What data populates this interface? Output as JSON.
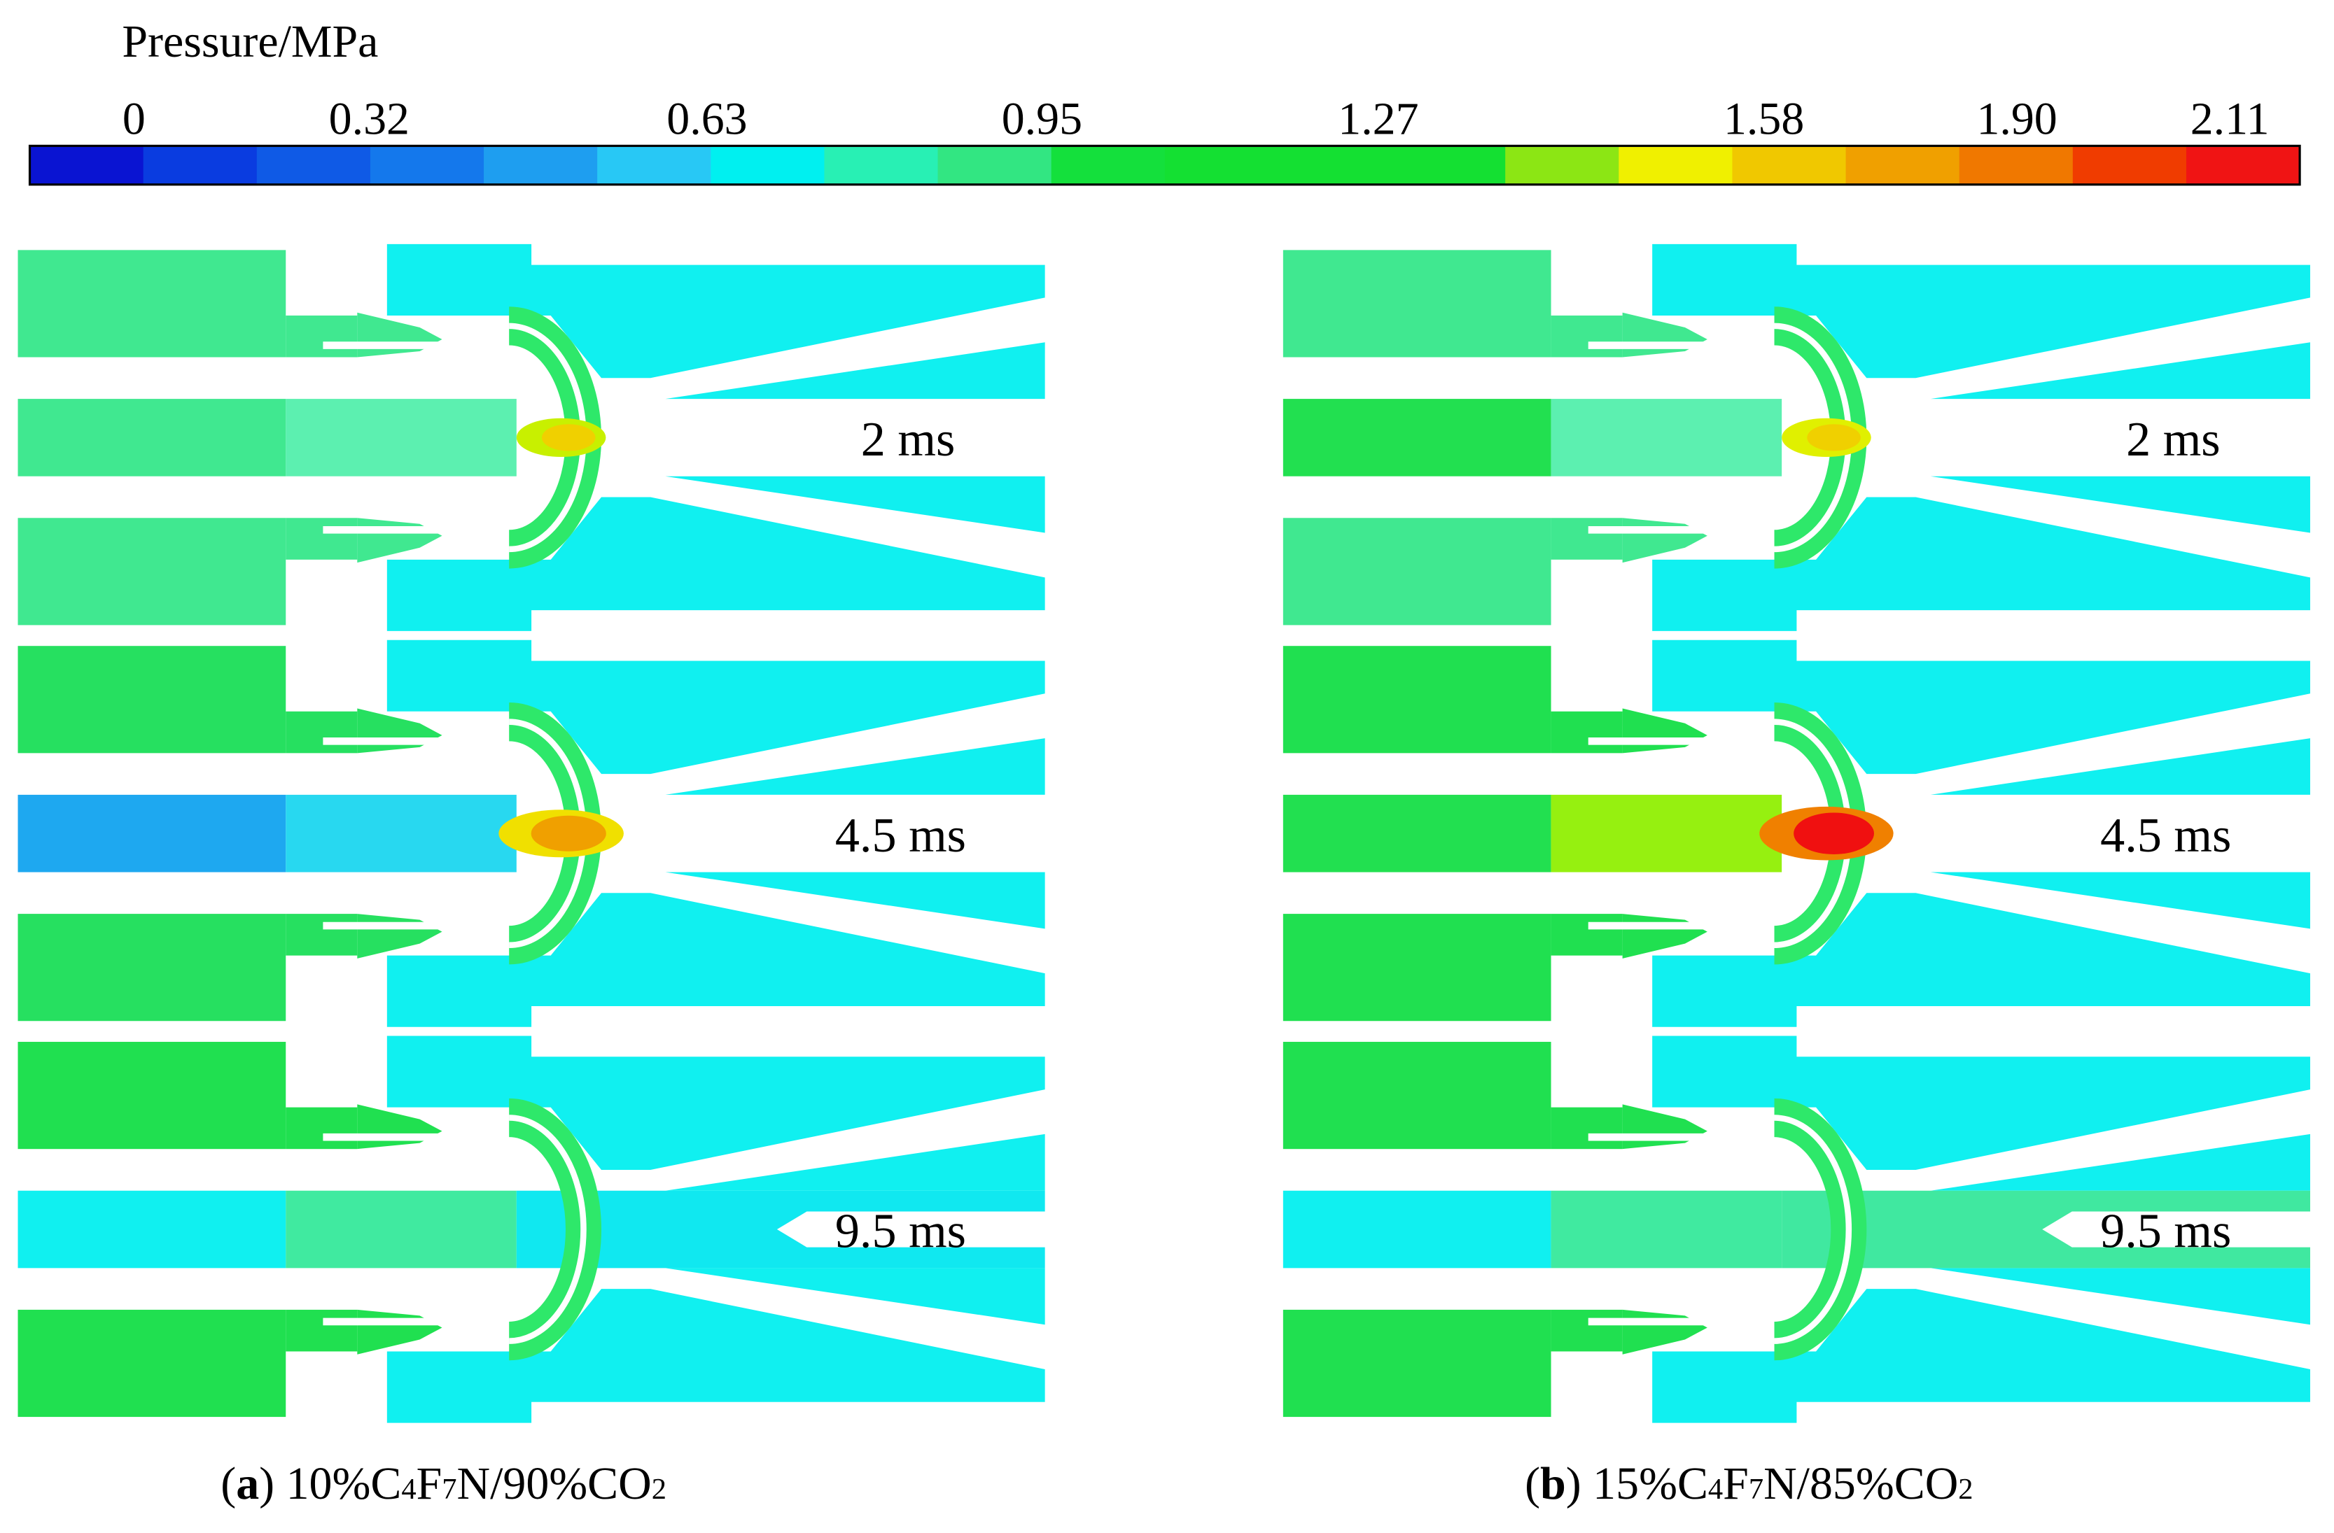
{
  "colorbar": {
    "title": "Pressure/MPa",
    "ticks": [
      "0",
      "0.32",
      "0.63",
      "0.95",
      "1.27",
      "1.58",
      "1.90",
      "2.11"
    ],
    "colors": [
      "#0a14d2",
      "#0a3ce0",
      "#0f5ae6",
      "#1478ec",
      "#1e9ef0",
      "#28c8f5",
      "#00f0f0",
      "#28f0b4",
      "#32e682",
      "#14e03c",
      "#14e032",
      "#14e032",
      "#14e032",
      "#8ce614",
      "#f0f000",
      "#f0c800",
      "#f0a000",
      "#f07800",
      "#f03c00",
      "#f01414"
    ]
  },
  "panels": [
    {
      "caption": [
        "(",
        "a",
        ") 10%C",
        "4",
        "F",
        "7",
        "N/90%CO",
        "2"
      ],
      "times": [
        "2 ms",
        "4.5 ms",
        "9.5 ms"
      ]
    },
    {
      "caption": [
        "(",
        "b",
        ") 15%C",
        "4",
        "F",
        "7",
        "N/85%CO",
        "2"
      ],
      "times": [
        "2 ms",
        "4.5 ms",
        "9.5 ms"
      ]
    }
  ]
}
